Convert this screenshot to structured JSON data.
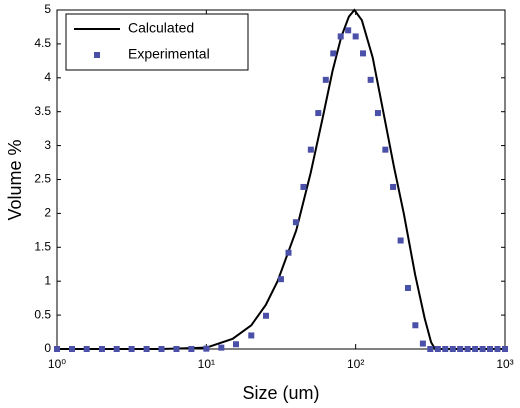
{
  "chart_data": {
    "type": "line",
    "xlabel": "Size (um)",
    "ylabel": "Volume %",
    "xscale": "log",
    "xlim": [
      1,
      1000
    ],
    "ylim": [
      0,
      5
    ],
    "xticks": [
      {
        "value": 1,
        "label": "10⁰"
      },
      {
        "value": 10,
        "label": "10¹"
      },
      {
        "value": 100,
        "label": "10²"
      },
      {
        "value": 1000,
        "label": "10³"
      }
    ],
    "yticks": [
      0,
      0.5,
      1,
      1.5,
      2,
      2.5,
      3,
      3.5,
      4,
      4.5,
      5
    ],
    "legend": "upper left",
    "series": [
      {
        "name": "Calculated",
        "color": "#000000",
        "mode": "line",
        "x": [
          1,
          5,
          10,
          15,
          20,
          25,
          30,
          40,
          50,
          60,
          70,
          80,
          90,
          98,
          110,
          130,
          150,
          180,
          210,
          250,
          290,
          320,
          340,
          400,
          1000
        ],
        "values": [
          0,
          0,
          0.02,
          0.15,
          0.35,
          0.65,
          1.0,
          1.75,
          2.6,
          3.4,
          4.1,
          4.6,
          4.9,
          5.0,
          4.85,
          4.3,
          3.6,
          2.7,
          2.0,
          1.1,
          0.45,
          0.1,
          0,
          0,
          0
        ]
      },
      {
        "name": "Experimental",
        "color": "#4a4fa8",
        "mode": "markers",
        "x": [
          1,
          1.26,
          1.58,
          2,
          2.51,
          3.16,
          3.98,
          5.01,
          6.31,
          7.94,
          10,
          12.6,
          15.8,
          20,
          25.1,
          31.6,
          35.5,
          39.8,
          44.7,
          50.1,
          56.2,
          63.1,
          70.8,
          79.4,
          89.1,
          100,
          112,
          126,
          141,
          158,
          178,
          200,
          224,
          251,
          282,
          316,
          355,
          398,
          447,
          501,
          562,
          631,
          708,
          794,
          891,
          1000
        ],
        "values": [
          0,
          0,
          0,
          0,
          0,
          0,
          0,
          0,
          0,
          0,
          0.005,
          0.02,
          0.07,
          0.2,
          0.49,
          1.03,
          1.42,
          1.87,
          2.39,
          2.94,
          3.48,
          3.97,
          4.36,
          4.61,
          4.7,
          4.61,
          4.36,
          3.97,
          3.48,
          2.94,
          2.39,
          1.6,
          0.9,
          0.35,
          0.08,
          0,
          0,
          0,
          0,
          0,
          0,
          0,
          0,
          0,
          0,
          0
        ]
      }
    ]
  }
}
